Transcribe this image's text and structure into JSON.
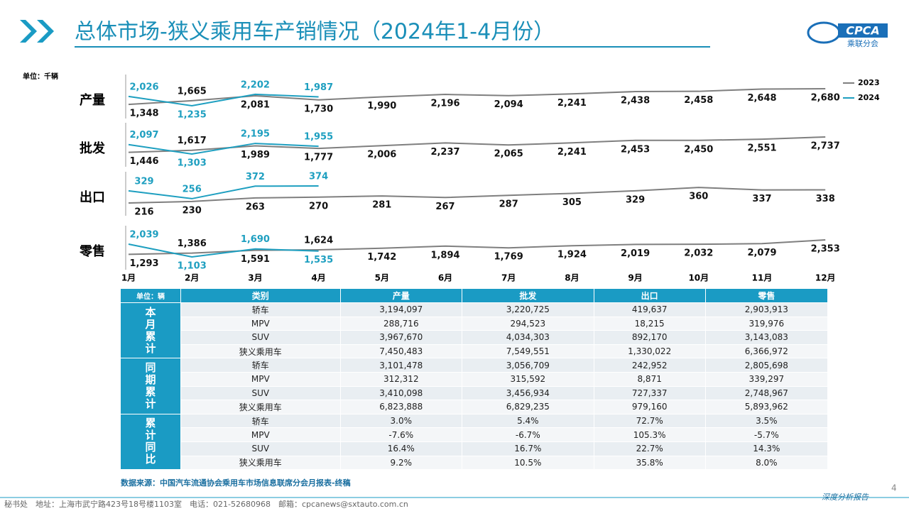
{
  "header": {
    "title": "总体市场-狭义乘用车产销情况（2024年1-4月份）",
    "logo": "CPCA",
    "logo_sub": "乘联分会"
  },
  "chart_data": {
    "type": "line",
    "unit": "单位：千辆",
    "panels": [
      "产量",
      "批发",
      "出口",
      "零售"
    ],
    "categories": [
      "1月",
      "2月",
      "3月",
      "4月",
      "5月",
      "6月",
      "7月",
      "8月",
      "9月",
      "10月",
      "11月",
      "12月"
    ],
    "series": [
      {
        "name": "2023",
        "color": "#7f7f7f",
        "values": [
          [
            1348,
            1665,
            2081,
            1730,
            1990,
            2196,
            2094,
            2241,
            2438,
            2458,
            2648,
            2680
          ],
          [
            1446,
            1617,
            1989,
            1777,
            2006,
            2237,
            2065,
            2241,
            2453,
            2450,
            2551,
            2737
          ],
          [
            216,
            230,
            263,
            270,
            281,
            267,
            287,
            305,
            329,
            360,
            337,
            338
          ],
          [
            1293,
            1386,
            1591,
            1624,
            1742,
            1894,
            1769,
            1924,
            2019,
            2032,
            2079,
            2353
          ]
        ],
        "value_labels": [
          [
            "1,348",
            "1,665",
            "2,081",
            "1,730",
            "1,990",
            "2,196",
            "2,094",
            "2,241",
            "2,438",
            "2,458",
            "2,648",
            "2,680"
          ],
          [
            "1,446",
            "1,617",
            "1,989",
            "1,777",
            "2,006",
            "2,237",
            "2,065",
            "2,241",
            "2,453",
            "2,450",
            "2,551",
            "2,737"
          ],
          [
            "216",
            "230",
            "263",
            "270",
            "281",
            "267",
            "287",
            "305",
            "329",
            "360",
            "337",
            "338"
          ],
          [
            "1,293",
            "1,386",
            "1,591",
            "1,624",
            "1,742",
            "1,894",
            "1,769",
            "1,924",
            "2,019",
            "2,032",
            "2,079",
            "2,353"
          ]
        ]
      },
      {
        "name": "2024",
        "color": "#1e9fc0",
        "values": [
          [
            2026,
            1235,
            2202,
            1987
          ],
          [
            2097,
            1303,
            2195,
            1955
          ],
          [
            329,
            256,
            372,
            374
          ],
          [
            2039,
            1103,
            1690,
            1535
          ]
        ],
        "value_labels": [
          [
            "2,026",
            "1,235",
            "2,202",
            "1,987"
          ],
          [
            "2,097",
            "1,303",
            "2,195",
            "1,955"
          ],
          [
            "329",
            "256",
            "372",
            "374"
          ],
          [
            "2,039",
            "1,103",
            "1,690",
            "1,535"
          ]
        ]
      }
    ]
  },
  "table": {
    "header": [
      "单位：辆",
      "类别",
      "产量",
      "批发",
      "出口",
      "零售"
    ],
    "groups": [
      {
        "label": "本月累计",
        "rows": [
          [
            "轿车",
            "3,194,097",
            "3,220,725",
            "419,637",
            "2,903,913"
          ],
          [
            "MPV",
            "288,716",
            "294,523",
            "18,215",
            "319,976"
          ],
          [
            "SUV",
            "3,967,670",
            "4,034,303",
            "892,170",
            "3,143,083"
          ],
          [
            "狭义乘用车",
            "7,450,483",
            "7,549,551",
            "1,330,022",
            "6,366,972"
          ]
        ]
      },
      {
        "label": "同期累计",
        "rows": [
          [
            "轿车",
            "3,101,478",
            "3,056,709",
            "242,952",
            "2,805,698"
          ],
          [
            "MPV",
            "312,312",
            "315,592",
            "8,871",
            "339,297"
          ],
          [
            "SUV",
            "3,410,098",
            "3,456,934",
            "727,337",
            "2,748,967"
          ],
          [
            "狭义乘用车",
            "6,823,888",
            "6,829,235",
            "979,160",
            "5,893,962"
          ]
        ]
      },
      {
        "label": "累计同比",
        "rows": [
          [
            "轿车",
            "3.0%",
            "5.4%",
            "72.7%",
            "3.5%"
          ],
          [
            "MPV",
            "-7.6%",
            "-6.7%",
            "105.3%",
            "-5.7%"
          ],
          [
            "SUV",
            "16.4%",
            "16.7%",
            "22.7%",
            "14.3%"
          ],
          [
            "狭义乘用车",
            "9.2%",
            "10.5%",
            "35.8%",
            "8.0%"
          ]
        ]
      }
    ]
  },
  "source": "数据来源：中国汽车流通协会乘用车市场信息联席分会月报表-终稿",
  "footer": {
    "address": "秘书处　地址：上海市武宁路423号18号楼1103室　电话：021-52680968　邮箱：cpcanews@sxtauto.com.cn",
    "report": "深度分析报告",
    "page": "4"
  }
}
